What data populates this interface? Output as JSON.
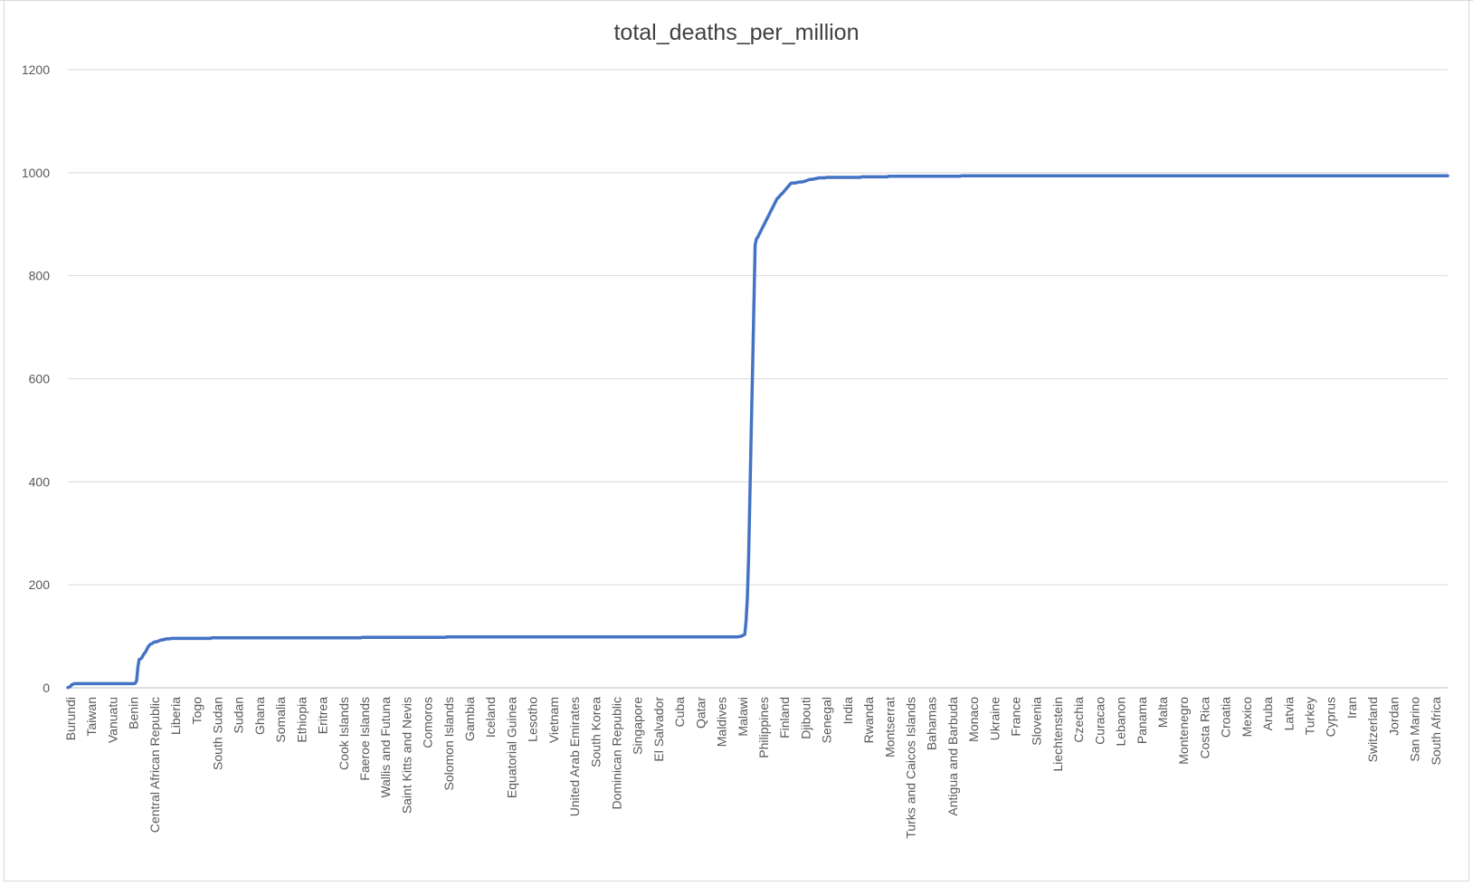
{
  "chart_data": {
    "type": "line",
    "title": "total_deaths_per_million",
    "xlabel": "",
    "ylabel": "",
    "ylim": [
      0,
      1200
    ],
    "yticks": [
      0,
      200,
      400,
      600,
      800,
      1000,
      1200
    ],
    "grid": true,
    "legend": "none",
    "x_labels": [
      "Burundi",
      "Taiwan",
      "Vanuatu",
      "Benin",
      "Central African Republic",
      "Liberia",
      "Togo",
      "South Sudan",
      "Sudan",
      "Ghana",
      "Somalia",
      "Ethiopia",
      "Eritrea",
      "Cook Islands",
      "Faeroe Islands",
      "Wallis and Futuna",
      "Saint Kitts and Nevis",
      "Comoros",
      "Solomon Islands",
      "Gambia",
      "Iceland",
      "Equatorial Guinea",
      "Lesotho",
      "Vietnam",
      "United Arab Emirates",
      "South Korea",
      "Dominican Republic",
      "Singapore",
      "El Salvador",
      "Cuba",
      "Qatar",
      "Maldives",
      "Malawi",
      "Philippines",
      "Finland",
      "Djibouti",
      "Senegal",
      "India",
      "Rwanda",
      "Montserrat",
      "Turks and Caicos Islands",
      "Bahamas",
      "Antigua and Barbuda",
      "Monaco",
      "Ukraine",
      "France",
      "Slovenia",
      "Liechtenstein",
      "Czechia",
      "Curacao",
      "Lebanon",
      "Panama",
      "Malta",
      "Montenegro",
      "Costa Rica",
      "Croatia",
      "Mexico",
      "Aruba",
      "Latvia",
      "Turkey",
      "Cyprus",
      "Iran",
      "Switzerland",
      "Jordan",
      "San Marino",
      "South Africa"
    ],
    "series": [
      {
        "color": "#4472c4",
        "values": [
          0.5,
          1,
          3,
          6,
          7,
          8,
          8,
          8,
          8,
          8,
          8,
          8,
          8,
          8,
          8,
          8,
          8,
          8,
          8,
          8,
          8,
          8,
          8,
          8,
          8,
          8,
          8,
          8,
          8,
          8,
          8,
          8,
          8,
          8,
          8,
          8,
          8,
          8,
          8,
          8,
          8,
          8,
          8,
          8,
          8,
          8,
          8,
          8,
          8,
          8,
          8,
          8,
          9,
          14,
          40,
          55,
          56,
          58,
          63,
          67,
          70,
          75,
          80,
          83,
          85,
          86,
          88,
          89,
          89,
          90,
          91,
          92,
          93,
          93,
          94,
          94,
          95,
          95,
          95,
          95,
          96,
          96,
          96,
          96,
          96,
          96,
          96,
          96,
          96,
          96,
          96,
          96,
          96,
          96,
          96,
          96,
          96,
          96,
          96,
          96,
          96,
          96,
          96,
          96,
          96,
          96,
          96,
          96,
          96,
          96,
          96,
          97,
          97,
          97,
          97,
          97,
          97,
          97,
          97,
          97,
          97,
          97,
          97,
          97,
          97,
          97,
          97,
          97,
          97,
          97,
          97,
          97,
          97,
          97,
          97,
          97,
          97,
          97,
          97,
          97,
          97,
          97,
          97,
          97,
          97,
          97,
          97,
          97,
          97,
          97,
          97,
          97,
          97,
          97,
          97,
          97,
          97,
          97,
          97,
          97,
          97,
          97,
          97,
          97,
          97,
          97,
          97,
          97,
          97,
          97,
          97,
          97,
          97,
          97,
          97,
          97,
          97,
          97,
          97,
          97,
          97,
          97,
          97,
          97,
          97,
          97,
          97,
          97,
          97,
          97,
          97,
          97,
          97,
          97,
          97,
          97,
          97,
          97,
          97,
          97,
          97,
          97,
          97,
          97,
          97,
          97,
          97,
          97,
          97,
          97,
          97,
          97,
          97,
          97,
          97,
          97,
          97,
          97,
          97,
          97,
          97,
          97,
          97,
          97,
          97,
          97,
          97,
          98,
          98,
          98,
          98,
          98,
          98,
          98,
          98,
          98,
          98,
          98,
          98,
          98,
          98,
          98,
          98,
          98,
          98,
          98,
          98,
          98,
          98,
          98,
          98,
          98,
          98,
          98,
          98,
          98,
          98,
          98,
          98,
          98,
          98,
          98,
          98,
          98,
          98,
          98,
          98,
          98,
          98,
          98,
          98,
          98,
          98,
          98,
          98,
          98,
          98,
          98,
          98,
          98,
          98,
          98,
          98,
          98,
          98,
          98,
          98,
          98,
          98,
          98,
          98,
          98,
          99,
          99,
          99,
          99,
          99,
          99,
          99,
          99,
          99,
          99,
          99,
          99,
          99,
          99,
          99,
          99,
          99,
          99,
          99,
          99,
          99,
          99,
          99,
          99,
          99,
          99,
          99,
          99,
          99,
          99,
          99,
          99,
          99,
          99,
          99,
          99,
          99,
          99,
          99,
          99,
          99,
          99,
          99,
          99,
          99,
          99,
          99,
          99,
          99,
          99,
          99,
          99,
          99,
          99,
          99,
          99,
          99,
          99,
          99,
          99,
          99,
          99,
          99,
          99,
          99,
          99,
          99,
          99,
          99,
          99,
          99,
          99,
          99,
          99,
          99,
          99,
          99,
          99,
          99,
          99,
          99,
          99,
          99,
          99,
          99,
          99,
          99,
          99,
          99,
          99,
          99,
          99,
          99,
          99,
          99,
          99,
          99,
          99,
          99,
          99,
          99,
          99,
          99,
          99,
          99,
          99,
          99,
          99,
          99,
          99,
          99,
          99,
          99,
          99,
          99,
          99,
          99,
          99,
          99,
          99,
          99,
          99,
          99,
          99,
          99,
          99,
          99,
          99,
          99,
          99,
          99,
          99,
          99,
          99,
          99,
          99,
          99,
          99,
          99,
          99,
          99,
          99,
          99,
          99,
          99,
          99,
          99,
          99,
          99,
          99,
          99,
          99,
          99,
          99,
          99,
          99,
          99,
          99,
          99,
          99,
          99,
          99,
          99,
          99,
          99,
          99,
          99,
          99,
          99,
          99,
          99,
          99,
          99,
          99,
          99,
          99,
          99,
          99,
          99,
          99,
          99,
          99,
          99,
          99,
          99,
          99,
          99,
          99,
          99,
          99,
          99,
          99,
          99,
          99,
          99,
          99,
          99,
          99,
          99,
          99,
          99,
          99,
          99,
          99,
          99,
          99,
          99,
          99,
          99,
          99,
          99,
          99,
          99,
          99,
          99,
          99,
          99,
          99,
          99,
          99,
          99,
          99,
          99,
          99,
          99,
          99,
          100,
          100,
          101,
          102,
          104,
          130,
          175,
          260,
          380,
          500,
          620,
          740,
          860,
          872,
          875,
          880,
          885,
          890,
          895,
          900,
          905,
          910,
          915,
          920,
          925,
          930,
          935,
          940,
          945,
          950,
          952,
          955,
          958,
          960,
          963,
          966,
          969,
          972,
          975,
          978,
          980,
          980,
          980,
          980,
          981,
          981,
          982,
          982,
          982,
          983,
          983,
          984,
          985,
          986,
          987,
          987,
          987,
          988,
          988,
          989,
          989,
          990,
          990,
          990,
          990,
          990,
          990,
          991,
          991,
          991,
          991,
          991,
          991,
          991,
          991,
          991,
          991,
          991,
          991,
          991,
          991,
          991,
          991,
          991,
          991,
          991,
          991,
          991,
          991,
          991,
          991,
          991,
          991,
          991,
          992,
          992,
          992,
          992,
          992,
          992,
          992,
          992,
          992,
          992,
          992,
          992,
          992,
          992,
          992,
          992,
          992,
          992,
          992,
          992,
          992,
          993,
          993,
          993,
          993,
          993,
          993,
          993,
          993,
          993,
          993,
          993,
          993,
          993,
          993,
          993,
          993,
          993,
          993,
          993,
          993,
          993,
          993,
          993,
          993,
          993,
          993,
          993,
          993,
          993,
          993,
          993,
          993,
          993,
          993,
          993,
          993,
          993,
          993,
          993,
          993,
          993,
          993,
          993,
          993,
          993,
          993,
          993,
          993,
          993,
          993,
          993,
          993,
          993,
          993,
          993,
          993,
          994,
          994,
          994,
          994,
          994,
          994,
          994,
          994,
          994,
          994,
          994,
          994,
          994,
          994,
          994,
          994,
          994,
          994,
          994,
          994,
          994,
          994,
          994,
          994,
          994,
          994,
          994,
          994,
          994,
          994,
          994,
          994,
          994,
          994,
          994,
          994,
          994,
          994,
          994,
          994,
          994,
          994,
          994,
          994,
          994,
          994,
          994,
          994,
          994,
          994,
          994,
          994,
          994,
          994,
          994,
          994,
          994,
          994,
          994,
          994,
          994,
          994,
          994,
          994,
          994,
          994,
          994,
          994,
          994,
          994,
          994,
          994,
          994,
          994,
          994,
          994,
          994,
          994,
          994,
          994,
          994,
          994,
          994,
          994,
          994,
          994,
          994,
          994,
          994,
          994,
          994,
          994,
          994,
          994,
          994,
          994,
          994,
          994,
          994,
          994,
          994,
          994,
          994,
          994,
          994,
          994,
          994,
          994,
          994,
          994,
          994,
          994,
          994,
          994,
          994,
          994,
          994,
          994,
          994,
          994,
          994,
          994,
          994,
          994,
          994,
          994,
          994,
          994,
          994,
          994,
          994,
          994,
          994,
          994,
          994,
          994,
          994,
          994,
          994,
          994,
          994,
          994,
          994,
          994,
          994,
          994,
          994,
          994,
          994,
          994,
          994,
          994,
          994,
          994,
          994,
          994,
          994,
          994,
          994,
          994,
          994,
          994,
          994,
          994,
          994,
          994,
          994,
          994,
          994,
          994,
          994,
          994,
          994,
          994,
          994,
          994,
          994,
          994,
          994,
          994,
          994,
          994,
          994,
          994,
          994,
          994,
          994,
          994,
          994,
          994,
          994,
          994,
          994,
          994,
          994,
          994,
          994,
          994,
          994,
          994,
          994,
          994,
          994,
          994,
          994,
          994,
          994,
          994,
          994,
          994,
          994,
          994,
          994,
          994,
          994,
          994,
          994,
          994,
          994,
          994,
          994,
          994,
          994,
          994,
          994,
          994,
          994,
          994,
          994,
          994,
          994,
          994,
          994,
          994,
          994,
          994,
          994,
          994,
          994,
          994,
          994,
          994,
          994,
          994,
          994,
          994,
          994,
          994,
          994,
          994,
          994,
          994,
          994,
          994,
          994,
          994,
          994,
          994,
          994,
          994,
          994,
          994,
          994,
          994,
          994,
          994,
          994,
          994,
          994,
          994,
          994,
          994,
          994,
          994,
          994,
          994,
          994,
          994,
          994,
          994,
          994,
          994,
          994,
          994,
          994,
          994,
          994,
          994,
          994,
          994,
          994,
          994,
          994,
          994,
          994,
          994,
          994,
          994,
          994,
          994,
          994,
          994,
          994,
          994,
          994,
          994,
          994,
          994,
          994,
          994,
          994,
          994,
          994,
          994,
          994,
          994,
          994,
          994,
          994,
          994,
          994,
          994,
          994,
          994,
          994,
          994,
          994,
          994,
          994,
          994,
          994,
          994,
          994,
          994,
          994,
          994,
          994,
          994,
          994,
          994,
          994,
          994,
          994,
          994,
          994,
          994,
          994,
          994,
          994,
          994,
          994,
          994,
          994,
          994,
          994,
          994,
          994,
          994,
          994,
          994,
          994,
          994,
          994,
          994,
          994,
          994,
          994,
          994,
          994,
          994,
          994,
          994,
          994,
          994,
          994,
          994
        ]
      }
    ]
  }
}
